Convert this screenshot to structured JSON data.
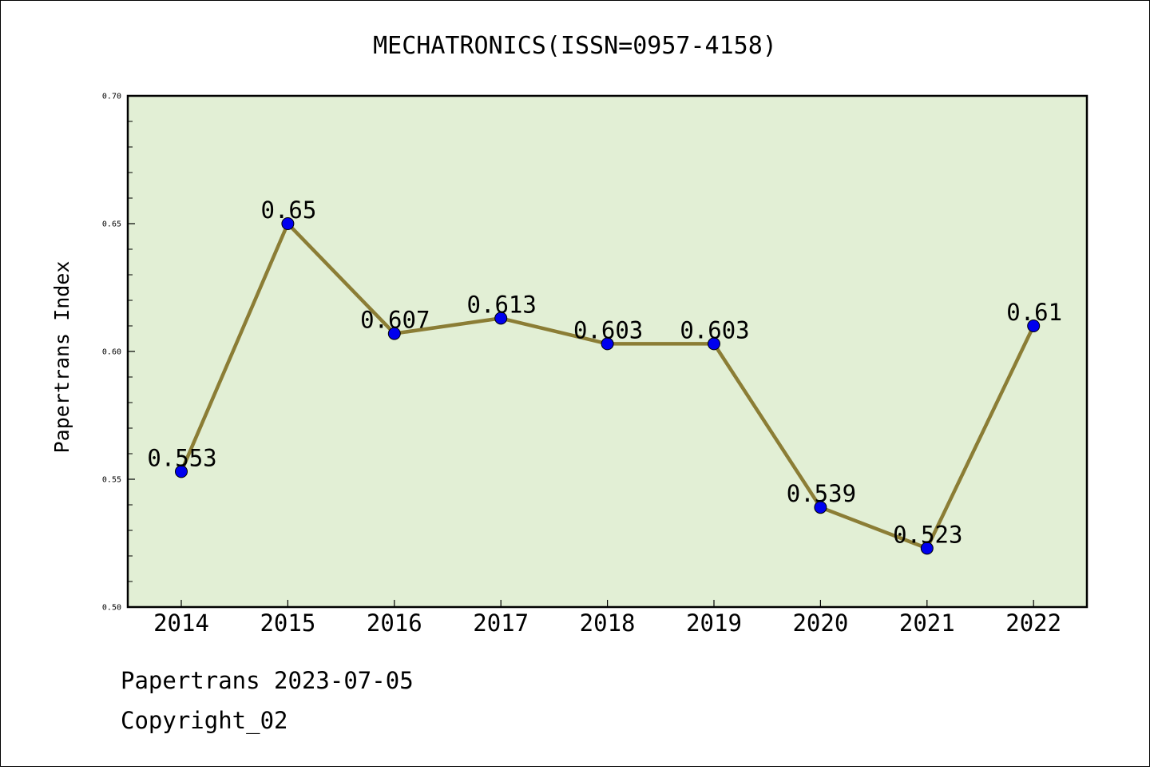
{
  "chart_data": {
    "type": "line",
    "title": "MECHATRONICS(ISSN=0957-4158)",
    "ylabel": "Papertrans Index",
    "xlabel": "",
    "categories": [
      "2014",
      "2015",
      "2016",
      "2017",
      "2018",
      "2019",
      "2020",
      "2021",
      "2022"
    ],
    "series": [
      {
        "values": [
          0.553,
          0.65,
          0.607,
          0.613,
          0.603,
          0.603,
          0.539,
          0.523,
          0.61
        ],
        "labels": [
          "0.553",
          "0.65",
          "0.607",
          "0.613",
          "0.603",
          "0.603",
          "0.539",
          "0.523",
          "0.61"
        ]
      }
    ],
    "ylim": [
      0.5,
      0.7
    ],
    "yticks": [
      0.5,
      0.55,
      0.6,
      0.65,
      0.7
    ],
    "ytick_labels": [
      "0.50",
      "0.55",
      "0.60",
      "0.65",
      "0.70"
    ],
    "grid": false,
    "legend": "none",
    "colors": {
      "plot_background": "#e2efd5",
      "line": "#8b7d35",
      "marker": "#0000ee"
    }
  },
  "footer": {
    "source": "Papertrans 2023-07-05",
    "copyright": "Copyright_02"
  }
}
